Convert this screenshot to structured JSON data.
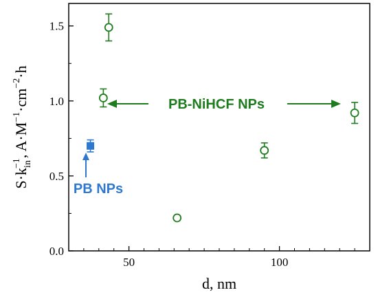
{
  "chart_data": {
    "type": "scatter",
    "xlabel": "d, nm",
    "ylabel_parts": {
      "s": "S·k",
      "sub": "in",
      "sup1": "−1",
      "rest1": ", A·M",
      "sup2": "−1",
      "rest2": "·cm",
      "sup3": "−2",
      "rest3": "·h"
    },
    "xlim": [
      30,
      130
    ],
    "ylim": [
      0.0,
      1.65
    ],
    "xticks": [
      50,
      100
    ],
    "yticks": [
      0.0,
      0.5,
      1.0,
      1.5
    ],
    "xtick_labels": [
      "50",
      "100"
    ],
    "ytick_labels": [
      "0.0",
      "0.5",
      "1.0",
      "1.5"
    ],
    "grid": false,
    "series": [
      {
        "name": "PB-NiHCF NPs",
        "color": "#1e7b1e",
        "marker": "open-circle",
        "points": [
          {
            "x": 41.5,
            "y": 1.02,
            "err": 0.06
          },
          {
            "x": 43.3,
            "y": 1.49,
            "err": 0.09
          },
          {
            "x": 66.0,
            "y": 0.22,
            "err": 0.01
          },
          {
            "x": 95.0,
            "y": 0.67,
            "err": 0.05
          },
          {
            "x": 125.0,
            "y": 0.92,
            "err": 0.07
          }
        ]
      },
      {
        "name": "PB NPs",
        "color": "#2f78d0",
        "marker": "filled-square",
        "points": [
          {
            "x": 37.2,
            "y": 0.7,
            "err": 0.04
          }
        ]
      }
    ],
    "annotations": {
      "green_label": "PB-NiHCF NPs",
      "blue_label": "PB NPs"
    }
  }
}
